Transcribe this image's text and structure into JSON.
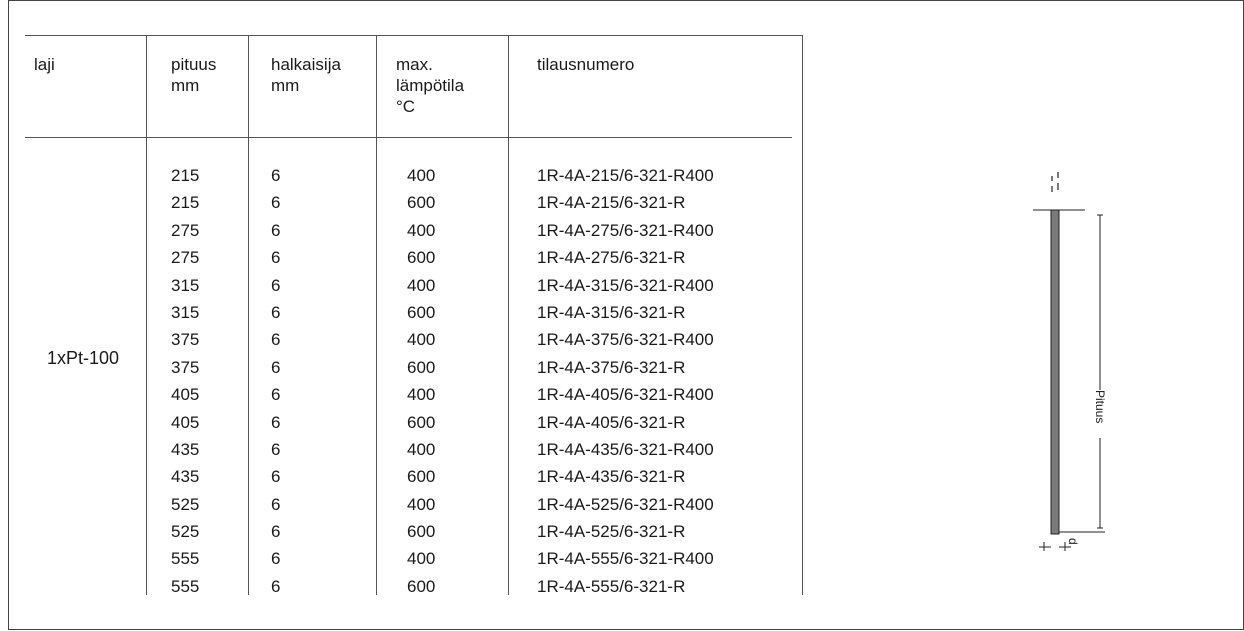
{
  "table": {
    "headers": [
      "laji",
      "pituus\nmm",
      "halkaisija\nmm",
      "max.\nlämpötila\n°C",
      "tilausnumero"
    ],
    "type_label": "1xPt-100",
    "rows": [
      {
        "pituus": "215",
        "halkaisija": "6",
        "max_temp": "400",
        "tilausnumero": "1R-4A-215/6-321-R400"
      },
      {
        "pituus": "215",
        "halkaisija": "6",
        "max_temp": "600",
        "tilausnumero": "1R-4A-215/6-321-R"
      },
      {
        "pituus": "275",
        "halkaisija": "6",
        "max_temp": "400",
        "tilausnumero": "1R-4A-275/6-321-R400"
      },
      {
        "pituus": "275",
        "halkaisija": "6",
        "max_temp": "600",
        "tilausnumero": "1R-4A-275/6-321-R"
      },
      {
        "pituus": "315",
        "halkaisija": "6",
        "max_temp": "400",
        "tilausnumero": "1R-4A-315/6-321-R400"
      },
      {
        "pituus": "315",
        "halkaisija": "6",
        "max_temp": "600",
        "tilausnumero": "1R-4A-315/6-321-R"
      },
      {
        "pituus": "375",
        "halkaisija": "6",
        "max_temp": "400",
        "tilausnumero": "1R-4A-375/6-321-R400"
      },
      {
        "pituus": "375",
        "halkaisija": "6",
        "max_temp": "600",
        "tilausnumero": "1R-4A-375/6-321-R"
      },
      {
        "pituus": "405",
        "halkaisija": "6",
        "max_temp": "400",
        "tilausnumero": "1R-4A-405/6-321-R400"
      },
      {
        "pituus": "405",
        "halkaisija": "6",
        "max_temp": "600",
        "tilausnumero": "1R-4A-405/6-321-R"
      },
      {
        "pituus": "435",
        "halkaisija": "6",
        "max_temp": "400",
        "tilausnumero": "1R-4A-435/6-321-R400"
      },
      {
        "pituus": "435",
        "halkaisija": "6",
        "max_temp": "600",
        "tilausnumero": "1R-4A-435/6-321-R"
      },
      {
        "pituus": "525",
        "halkaisija": "6",
        "max_temp": "400",
        "tilausnumero": "1R-4A-525/6-321-R400"
      },
      {
        "pituus": "525",
        "halkaisija": "6",
        "max_temp": "600",
        "tilausnumero": "1R-4A-525/6-321-R"
      },
      {
        "pituus": "555",
        "halkaisija": "6",
        "max_temp": "400",
        "tilausnumero": "1R-4A-555/6-321-R400"
      },
      {
        "pituus": "555",
        "halkaisija": "6",
        "max_temp": "600",
        "tilausnumero": "1R-4A-555/6-321-R"
      }
    ]
  },
  "diagram": {
    "length_label": "Pituus",
    "diameter_label": "d"
  }
}
